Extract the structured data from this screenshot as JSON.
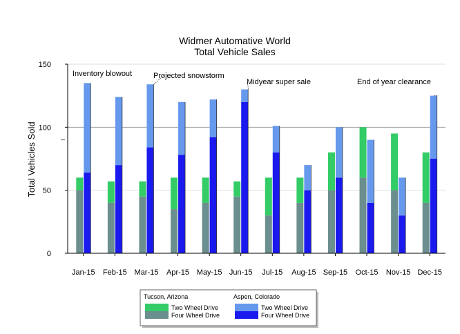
{
  "chart_data": {
    "type": "bar",
    "title": "Widmer Automative World",
    "subtitle": "Total Vehicle Sales",
    "xlabel": "",
    "ylabel": "Total Vehicles Sold",
    "ylim": [
      0,
      150
    ],
    "yticks": [
      0,
      50,
      100,
      150
    ],
    "grid": "horizontal",
    "legend_position": "bottom",
    "categories": [
      "Jan-15",
      "Feb-15",
      "Mar-15",
      "Apr-15",
      "May-15",
      "Jun-15",
      "Jul-15",
      "Aug-15",
      "Sep-15",
      "Oct-15",
      "Nov-15",
      "Dec-15"
    ],
    "groups": [
      {
        "name": "Tucson, Arizona",
        "series": [
          {
            "name": "Four Wheel Drive",
            "color": "#6b8e8e",
            "values": [
              50,
              40,
              45,
              35,
              40,
              45,
              30,
              40,
              50,
              60,
              50,
              40
            ]
          },
          {
            "name": "Two Wheel Drive",
            "color": "#33cc66",
            "values": [
              10,
              17,
              12,
              25,
              20,
              12,
              30,
              20,
              30,
              40,
              45,
              40
            ]
          }
        ]
      },
      {
        "name": "Aspen, Colorado",
        "series": [
          {
            "name": "Four Wheel Drive",
            "color": "#1a1aee",
            "values": [
              64,
              70,
              84,
              78,
              92,
              120,
              80,
              50,
              60,
              40,
              30,
              75
            ]
          },
          {
            "name": "Two Wheel Drive",
            "color": "#6699ee",
            "values": [
              71,
              54,
              50,
              42,
              30,
              10,
              21,
              20,
              40,
              50,
              30,
              50
            ]
          }
        ]
      }
    ],
    "annotations": [
      {
        "text": "Inventory blowout",
        "category": "Jan-15"
      },
      {
        "text": "Projected snowstorm",
        "category": "Mar-15"
      },
      {
        "text": "Midyear super sale",
        "category": "Jun-15"
      },
      {
        "text": "End of year clearance",
        "category": "Dec-15"
      }
    ]
  }
}
